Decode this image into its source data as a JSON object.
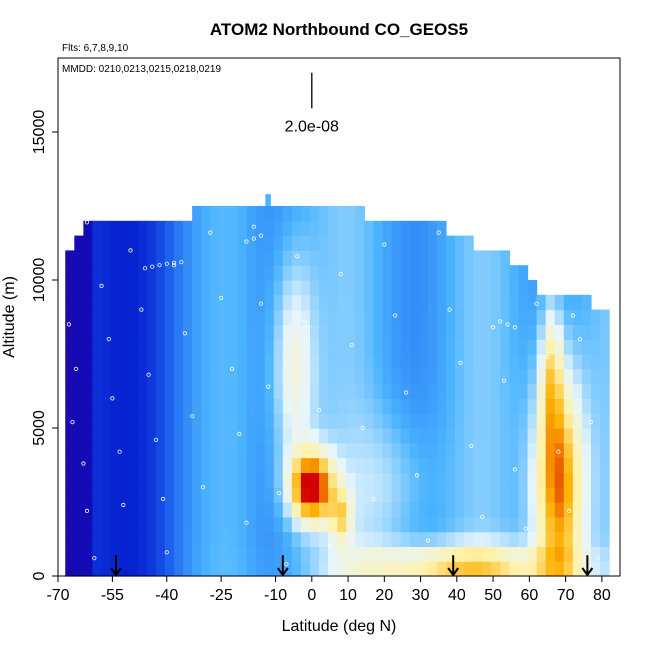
{
  "chart_data": {
    "type": "heatmap",
    "title": "ATOM2 Northbound CO_GEOS5",
    "notes": [
      "Flts: 6,7,8,9,10",
      "MMDD: 0210,0213,0215,0218,0219"
    ],
    "xlabel": "Latitude (deg N)",
    "ylabel": "Altitude (m)",
    "xlim": [
      -70,
      85
    ],
    "ylim": [
      0,
      17500
    ],
    "xticks": [
      -70,
      -55,
      -40,
      -25,
      -10,
      0,
      10,
      20,
      30,
      40,
      50,
      60,
      70,
      80
    ],
    "xtick_labels": [
      "-70",
      "-55",
      "-40",
      "-25",
      "-10",
      "0",
      "10",
      "20",
      "30",
      "40",
      "50",
      "60",
      "70",
      "80"
    ],
    "yticks": [
      0,
      5000,
      10000,
      15000
    ],
    "ytick_labels": [
      "0",
      "5000",
      "10000",
      "15000"
    ],
    "scale_bar": {
      "label": "2.0e-08",
      "x": 0,
      "y_top": 17000,
      "y_bottom": 15800
    },
    "arrows_lat": [
      -54,
      -8,
      39,
      76
    ],
    "color_ramp": [
      "#3b008f",
      "#0010c8",
      "#1e64f0",
      "#4ab4ff",
      "#e6f5ff",
      "#fff2a8",
      "#ffb000",
      "#d40000"
    ],
    "grid": {
      "dlat": 2.5,
      "dalt": 500,
      "value_range": [
        0,
        1
      ]
    },
    "ceiling": [
      [
        -68,
        9500
      ],
      [
        -67,
        10500
      ],
      [
        -65,
        11200
      ],
      [
        -63,
        11800
      ],
      [
        -60,
        12000
      ],
      [
        -32,
        12000
      ],
      [
        -30,
        12400
      ],
      [
        -10,
        12400
      ],
      [
        -8,
        12500
      ],
      [
        12,
        12500
      ],
      [
        14,
        12000
      ],
      [
        35,
        12000
      ],
      [
        37,
        11500
      ],
      [
        45,
        11000
      ],
      [
        50,
        10800
      ],
      [
        60,
        10000
      ],
      [
        62,
        9500
      ],
      [
        75,
        9300
      ],
      [
        78,
        9000
      ],
      [
        80,
        9000
      ]
    ],
    "field_features": [
      {
        "lat": 0,
        "alt": 3000,
        "slat": 6,
        "salt": 1200,
        "amp": 0.6
      },
      {
        "lat": 8,
        "alt": 2000,
        "slat": 3,
        "salt": 900,
        "amp": 0.25
      },
      {
        "lat": -5,
        "alt": 7000,
        "slat": 6,
        "salt": 4000,
        "amp": 0.25
      },
      {
        "lat": 68,
        "alt": 3000,
        "slat": 7,
        "salt": 4000,
        "amp": 0.55
      },
      {
        "lat": 66,
        "alt": 7000,
        "slat": 3,
        "salt": 2500,
        "amp": 0.25
      },
      {
        "lat": 40,
        "alt": 300,
        "slat": 30,
        "salt": 800,
        "amp": 0.35
      },
      {
        "lat": 22,
        "alt": 3000,
        "slat": 12,
        "salt": 2500,
        "amp": 0.12
      }
    ],
    "samples": [
      {
        "lat": -67,
        "alt": 8500
      },
      {
        "lat": -65,
        "alt": 7000
      },
      {
        "lat": -66,
        "alt": 5200
      },
      {
        "lat": -63,
        "alt": 3800
      },
      {
        "lat": -62,
        "alt": 2200
      },
      {
        "lat": -60,
        "alt": 600
      },
      {
        "lat": -58,
        "alt": 9800
      },
      {
        "lat": -56,
        "alt": 8000
      },
      {
        "lat": -55,
        "alt": 6000
      },
      {
        "lat": -53,
        "alt": 4200
      },
      {
        "lat": -52,
        "alt": 2400
      },
      {
        "lat": -50,
        "alt": 11000
      },
      {
        "lat": -47,
        "alt": 9000
      },
      {
        "lat": -45,
        "alt": 6800
      },
      {
        "lat": -43,
        "alt": 4600
      },
      {
        "lat": -41,
        "alt": 2600
      },
      {
        "lat": -40,
        "alt": 800
      },
      {
        "lat": -38,
        "alt": 10500
      },
      {
        "lat": -35,
        "alt": 8200
      },
      {
        "lat": -33,
        "alt": 5400
      },
      {
        "lat": -30,
        "alt": 3000
      },
      {
        "lat": -28,
        "alt": 11600
      },
      {
        "lat": -25,
        "alt": 9400
      },
      {
        "lat": -22,
        "alt": 7000
      },
      {
        "lat": -20,
        "alt": 4800
      },
      {
        "lat": -18,
        "alt": 1800
      },
      {
        "lat": -16,
        "alt": 11800
      },
      {
        "lat": -14,
        "alt": 9200
      },
      {
        "lat": -12,
        "alt": 6400
      },
      {
        "lat": -9,
        "alt": 2800
      },
      {
        "lat": -7,
        "alt": 400
      },
      {
        "lat": -4,
        "alt": 10800
      },
      {
        "lat": -2,
        "alt": 8600
      },
      {
        "lat": 2,
        "alt": 5600
      },
      {
        "lat": 5,
        "alt": 1000
      },
      {
        "lat": 8,
        "alt": 10200
      },
      {
        "lat": 11,
        "alt": 7800
      },
      {
        "lat": 14,
        "alt": 5000
      },
      {
        "lat": 17,
        "alt": 2600
      },
      {
        "lat": 20,
        "alt": 11200
      },
      {
        "lat": 23,
        "alt": 8800
      },
      {
        "lat": 26,
        "alt": 6200
      },
      {
        "lat": 29,
        "alt": 3400
      },
      {
        "lat": 32,
        "alt": 1200
      },
      {
        "lat": 35,
        "alt": 11600
      },
      {
        "lat": 38,
        "alt": 9000
      },
      {
        "lat": 41,
        "alt": 7200
      },
      {
        "lat": 44,
        "alt": 4400
      },
      {
        "lat": 47,
        "alt": 2000
      },
      {
        "lat": 50,
        "alt": 8400
      },
      {
        "lat": 53,
        "alt": 6600
      },
      {
        "lat": 56,
        "alt": 3600
      },
      {
        "lat": 59,
        "alt": 1600
      },
      {
        "lat": 62,
        "alt": 9200
      },
      {
        "lat": 65,
        "alt": 7400
      },
      {
        "lat": 68,
        "alt": 4200
      },
      {
        "lat": 71,
        "alt": 2200
      },
      {
        "lat": 74,
        "alt": 8000
      },
      {
        "lat": 77,
        "alt": 5200
      },
      {
        "lat": 79,
        "alt": 600
      },
      {
        "lat": -46,
        "alt": 10400
      },
      {
        "lat": -44,
        "alt": 10450
      },
      {
        "lat": -42,
        "alt": 10500
      },
      {
        "lat": -40,
        "alt": 10550
      },
      {
        "lat": -38,
        "alt": 10580
      },
      {
        "lat": -36,
        "alt": 10600
      },
      {
        "lat": -18,
        "alt": 11300
      },
      {
        "lat": -16,
        "alt": 11400
      },
      {
        "lat": -14,
        "alt": 11500
      },
      {
        "lat": 52,
        "alt": 8600
      },
      {
        "lat": 54,
        "alt": 8500
      },
      {
        "lat": 56,
        "alt": 8400
      },
      {
        "lat": -64,
        "alt": 11900
      },
      {
        "lat": -62,
        "alt": 11950
      },
      {
        "lat": 72,
        "alt": 8800
      }
    ]
  }
}
